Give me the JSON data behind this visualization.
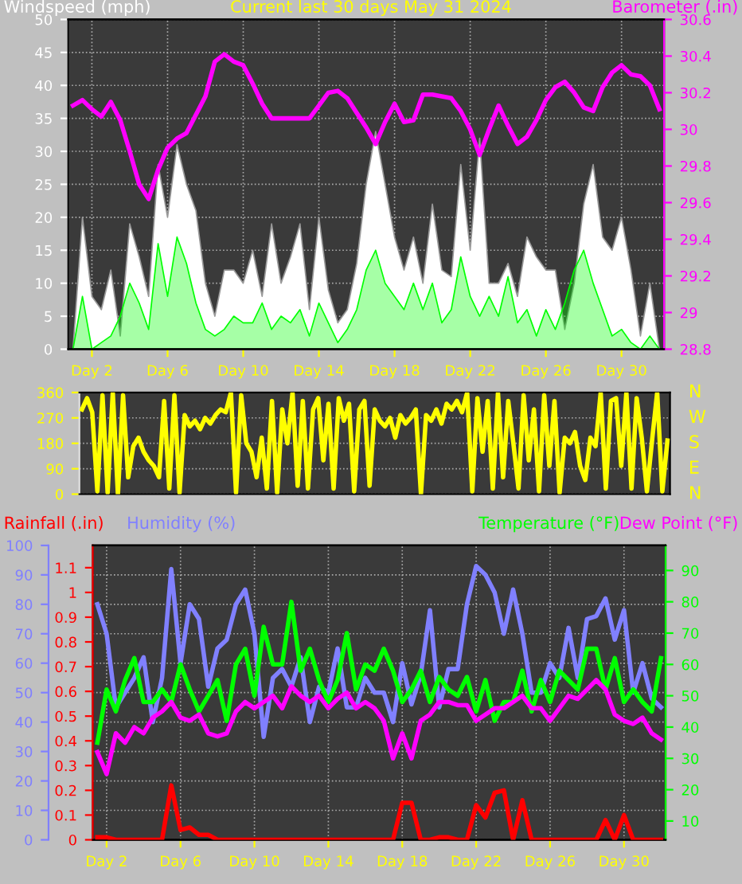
{
  "chart_data": [
    {
      "type": "area",
      "title": "Current last 30 days May 31 2024",
      "categories": [
        null,
        null,
        "Day 2",
        null,
        null,
        null,
        null,
        null,
        null,
        null,
        "Day 6",
        null,
        null,
        null,
        null,
        null,
        null,
        null,
        "Day 10",
        null,
        null,
        null,
        null,
        null,
        null,
        null,
        "Day 14",
        null,
        null,
        null,
        null,
        null,
        null,
        null,
        "Day 18",
        null,
        null,
        null,
        null,
        null,
        null,
        null,
        "Day 22",
        null,
        null,
        null,
        null,
        null,
        null,
        null,
        "Day 26",
        null,
        null,
        null,
        null,
        null,
        null,
        null,
        "Day 30",
        null,
        null,
        null,
        null
      ],
      "ylim": [
        0,
        50
      ],
      "yticks": [
        0,
        5,
        10,
        15,
        20,
        25,
        30,
        35,
        40,
        45,
        50
      ],
      "y2lim": [
        28.8,
        30.6
      ],
      "y2ticks": [
        28.8,
        29,
        29.2,
        29.4,
        29.6,
        29.8,
        30,
        30.2,
        30.4,
        30.6
      ],
      "grid": true,
      "series": [
        {
          "name": "Windspeed (mph)",
          "type": "area",
          "color": "#ffffff",
          "values": [
            0,
            20,
            8,
            6,
            12,
            2,
            19,
            14,
            8,
            28,
            20,
            31,
            25,
            21,
            10,
            5,
            12,
            12,
            10,
            15,
            8,
            19,
            10,
            14,
            19,
            6,
            20,
            9,
            4,
            6,
            13,
            25,
            33,
            25,
            17,
            12,
            17,
            10,
            22,
            12,
            11,
            28,
            15,
            32,
            10,
            10,
            13,
            8,
            17,
            14,
            12,
            12,
            3,
            10,
            22,
            28,
            17,
            15,
            20,
            12,
            2,
            10,
            0
          ]
        },
        {
          "type": "area",
          "color": "#00ff00",
          "values": [
            0,
            8,
            0,
            1,
            2,
            5,
            10,
            7,
            3,
            16,
            8,
            17,
            13,
            7,
            3,
            2,
            3,
            5,
            4,
            4,
            7,
            3,
            5,
            4,
            6,
            2,
            7,
            4,
            1,
            3,
            6,
            12,
            15,
            10,
            8,
            6,
            10,
            6,
            10,
            4,
            6,
            14,
            8,
            5,
            8,
            5,
            11,
            4,
            6,
            2,
            6,
            3,
            7,
            12,
            15,
            10,
            6,
            2,
            3,
            1,
            0,
            2,
            0
          ]
        },
        {
          "name": "Barometer (.in)",
          "type": "line",
          "axis": "y2",
          "color": "#ff00ff",
          "values": [
            30.13,
            30.16,
            30.11,
            30.07,
            30.15,
            30.05,
            29.88,
            29.7,
            29.62,
            29.78,
            29.9,
            29.95,
            29.98,
            30.08,
            30.18,
            30.37,
            30.41,
            30.37,
            30.35,
            30.25,
            30.14,
            30.06,
            30.06,
            30.06,
            30.06,
            30.06,
            30.13,
            30.2,
            30.21,
            30.17,
            30.09,
            30.01,
            29.92,
            30.04,
            30.14,
            30.04,
            30.05,
            30.19,
            30.19,
            30.18,
            30.17,
            30.1,
            30.0,
            29.86,
            30.0,
            30.13,
            30.02,
            29.92,
            29.96,
            30.05,
            30.16,
            30.23,
            30.26,
            30.2,
            30.12,
            30.1,
            30.23,
            30.31,
            30.35,
            30.3,
            30.29,
            30.24,
            30.11
          ]
        }
      ]
    },
    {
      "type": "line",
      "categories": [
        null,
        null,
        null,
        null,
        null,
        null,
        null,
        null,
        null,
        null,
        null,
        null,
        null,
        null,
        null,
        null,
        null,
        null,
        null,
        null,
        null,
        null,
        null,
        null,
        null,
        null,
        null,
        null,
        null,
        null,
        null,
        null,
        null,
        null,
        null,
        null,
        null,
        null,
        null,
        null,
        null,
        null,
        null,
        null,
        null,
        null,
        null,
        null,
        null,
        null,
        null,
        null,
        null,
        null,
        null,
        null,
        null,
        null,
        null,
        null,
        null,
        null,
        null,
        null,
        null,
        null,
        null,
        null,
        null,
        null,
        null,
        null,
        null,
        null,
        null,
        null,
        null,
        null,
        null,
        null,
        null,
        null,
        null,
        null,
        null,
        null,
        null,
        null,
        null,
        null,
        null,
        null,
        null,
        null,
        null,
        null,
        null,
        null,
        null,
        null,
        null,
        null,
        null,
        null,
        null,
        null,
        null,
        null,
        null,
        null,
        null,
        null,
        null,
        null,
        null
      ],
      "ylim": [
        0,
        360
      ],
      "yticks": [
        0,
        90,
        180,
        270,
        360
      ],
      "annotations": [
        "N",
        "W",
        "S",
        "E",
        "N"
      ],
      "grid": "y",
      "tick_labels": "y",
      "series": [
        {
          "color": "#ffff00",
          "values": [
            300,
            340,
            290,
            10,
            350,
            5,
            360,
            0,
            350,
            60,
            170,
            200,
            150,
            120,
            100,
            60,
            330,
            20,
            350,
            5,
            280,
            240,
            260,
            230,
            270,
            250,
            280,
            300,
            290,
            360,
            5,
            350,
            180,
            150,
            60,
            200,
            20,
            330,
            5,
            300,
            180,
            360,
            30,
            330,
            20,
            300,
            340,
            120,
            320,
            20,
            340,
            260,
            320,
            10,
            300,
            330,
            30,
            300,
            260,
            240,
            270,
            200,
            280,
            250,
            270,
            300,
            0,
            280,
            260,
            300,
            250,
            320,
            300,
            330,
            290,
            360,
            10,
            340,
            150,
            330,
            20,
            360,
            60,
            330,
            180,
            20,
            350,
            120,
            300,
            10,
            350,
            100,
            330,
            5,
            200,
            180,
            220,
            100,
            50,
            200,
            170,
            360,
            20,
            330,
            340,
            100,
            360,
            20,
            340,
            200,
            10,
            190,
            360,
            10,
            190
          ]
        }
      ]
    },
    {
      "type": "line",
      "categories": [
        null,
        "Day 2",
        null,
        null,
        null,
        null,
        null,
        null,
        null,
        "Day 6",
        null,
        null,
        null,
        null,
        null,
        null,
        null,
        "Day 10",
        null,
        null,
        null,
        null,
        null,
        null,
        null,
        "Day 14",
        null,
        null,
        null,
        null,
        null,
        null,
        null,
        "Day 18",
        null,
        null,
        null,
        null,
        null,
        null,
        null,
        "Day 22",
        null,
        null,
        null,
        null,
        null,
        null,
        null,
        "Day 26",
        null,
        null,
        null,
        null,
        null,
        null,
        null,
        "Day 30",
        null,
        null,
        null,
        null
      ],
      "ylim": [
        0,
        100
      ],
      "yticks": [
        0,
        10,
        20,
        30,
        40,
        50,
        60,
        70,
        80,
        90,
        100
      ],
      "y2lim": [
        4,
        98
      ],
      "y2ticks": [
        10,
        20,
        30,
        40,
        50,
        60,
        70,
        80,
        90
      ],
      "y3lim": [
        0,
        1.19
      ],
      "y3ticks": [
        0,
        0.1,
        0.2,
        0.3,
        0.4,
        0.5,
        0.6,
        0.7,
        0.8,
        0.9,
        1,
        1.1
      ],
      "grid": true,
      "series": [
        {
          "name": "Rainfall (.in)",
          "axis": "y3",
          "color": "#ff0000",
          "values": [
            0.01,
            0.01,
            0,
            0,
            0,
            0,
            0,
            0,
            0.22,
            0.04,
            0.05,
            0.02,
            0.02,
            0,
            0,
            0,
            0,
            0,
            0,
            0,
            0,
            0,
            0,
            0,
            0,
            0,
            0,
            0,
            0,
            0,
            0,
            0,
            0,
            0.15,
            0.15,
            0,
            0,
            0.01,
            0.01,
            0,
            0,
            0.14,
            0.09,
            0.19,
            0.2,
            0,
            0.16,
            0,
            0,
            0,
            0,
            0,
            0,
            0,
            0,
            0.08,
            0,
            0.1,
            0,
            0,
            0,
            0
          ]
        },
        {
          "name": "Humidity (%)",
          "axis": "y",
          "color": "#8080ff",
          "values": [
            80,
            70,
            45,
            50,
            55,
            62,
            40,
            55,
            92,
            60,
            80,
            75,
            52,
            65,
            68,
            80,
            85,
            70,
            35,
            55,
            58,
            52,
            62,
            40,
            52,
            50,
            65,
            45,
            45,
            55,
            50,
            50,
            40,
            60,
            46,
            56,
            78,
            45,
            58,
            58,
            80,
            93,
            90,
            84,
            70,
            85,
            70,
            50,
            50,
            60,
            55,
            72,
            55,
            75,
            76,
            82,
            68,
            78,
            50,
            60,
            48,
            45
          ]
        },
        {
          "name": "Temperature (°F)",
          "axis": "y2",
          "color": "#00ff00",
          "values": [
            35,
            52,
            45,
            55,
            62,
            48,
            48,
            52,
            48,
            60,
            52,
            45,
            50,
            55,
            42,
            60,
            65,
            50,
            72,
            60,
            60,
            80,
            58,
            65,
            55,
            48,
            55,
            70,
            52,
            60,
            58,
            65,
            58,
            48,
            52,
            58,
            48,
            56,
            52,
            50,
            56,
            45,
            55,
            42,
            48,
            48,
            58,
            45,
            55,
            48,
            58,
            55,
            52,
            65,
            65,
            52,
            62,
            48,
            52,
            48,
            45,
            62
          ]
        },
        {
          "name": "Dew Point (°F)",
          "axis": "y2",
          "color": "#ff00ff",
          "values": [
            32,
            25,
            38,
            35,
            40,
            38,
            43,
            45,
            48,
            43,
            42,
            44,
            38,
            37,
            38,
            45,
            48,
            46,
            48,
            50,
            46,
            53,
            50,
            48,
            50,
            46,
            49,
            51,
            46,
            48,
            46,
            42,
            30,
            38,
            30,
            42,
            44,
            48,
            48,
            47,
            47,
            42,
            44,
            46,
            46,
            48,
            50,
            46,
            46,
            42,
            46,
            50,
            49,
            52,
            55,
            52,
            44,
            42,
            41,
            43,
            38,
            36
          ]
        }
      ]
    }
  ]
}
